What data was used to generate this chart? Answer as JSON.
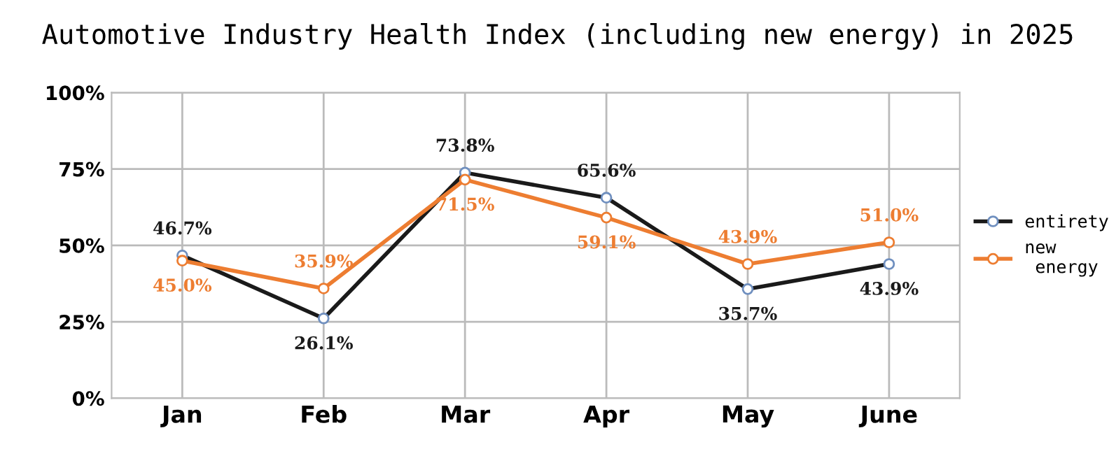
{
  "chart_data": {
    "type": "line",
    "title": "Automotive Industry Health Index (including new energy) in 2025",
    "categories": [
      "Jan",
      "Feb",
      "Mar",
      "Apr",
      "May",
      "June"
    ],
    "series": [
      {
        "name": "entirety",
        "color": "#1a1a1a",
        "values": [
          46.7,
          26.1,
          73.8,
          65.6,
          35.7,
          43.9
        ],
        "value_labels": [
          "46.7%",
          "26.1%",
          "73.8%",
          "65.6%",
          "35.7%",
          "43.9%"
        ]
      },
      {
        "name": "new energy",
        "color": "#ed7d31",
        "values": [
          45.0,
          35.9,
          71.5,
          59.1,
          43.9,
          51.0
        ],
        "value_labels": [
          "45.0%",
          "35.9%",
          "71.5%",
          "59.1%",
          "43.9%",
          "51.0%"
        ]
      }
    ],
    "ylim": [
      0,
      100
    ],
    "yticks": [
      {
        "value": 0,
        "label": "0%"
      },
      {
        "value": 25,
        "label": "25%"
      },
      {
        "value": 50,
        "label": "50%"
      },
      {
        "value": 75,
        "label": "75%"
      },
      {
        "value": 100,
        "label": "100%"
      }
    ],
    "grid": true,
    "legend": "right",
    "marker": "circle",
    "line_style": "solid"
  }
}
